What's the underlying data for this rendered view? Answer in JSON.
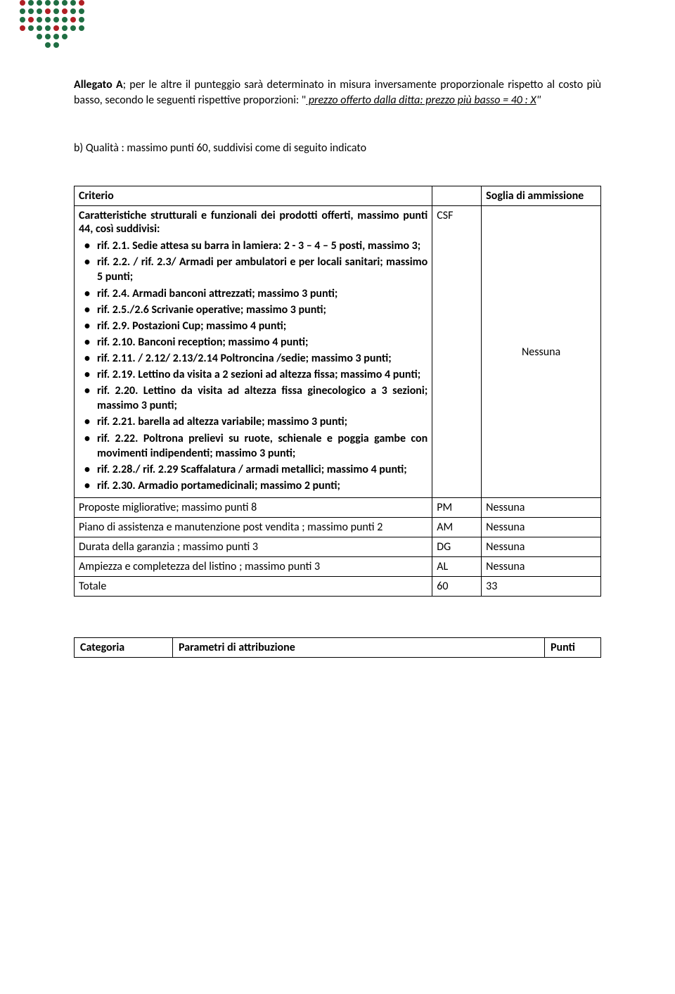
{
  "logo": {
    "rows": 6,
    "cols": 8,
    "gap": 12,
    "dots": [
      {
        "r": 0,
        "c": 0,
        "color": "#b01f24"
      },
      {
        "r": 0,
        "c": 1,
        "color": "#1f6e43"
      },
      {
        "r": 0,
        "c": 2,
        "color": "#1f6e43"
      },
      {
        "r": 0,
        "c": 3,
        "color": "#1f6e43"
      },
      {
        "r": 0,
        "c": 4,
        "color": "#1f6e43"
      },
      {
        "r": 0,
        "c": 5,
        "color": "#1f6e43"
      },
      {
        "r": 0,
        "c": 6,
        "color": "#1f6e43"
      },
      {
        "r": 0,
        "c": 7,
        "color": "#b01f24"
      },
      {
        "r": 1,
        "c": 0,
        "color": "#1f6e43"
      },
      {
        "r": 1,
        "c": 1,
        "color": "#1f6e43"
      },
      {
        "r": 1,
        "c": 2,
        "color": "#1f6e43"
      },
      {
        "r": 1,
        "c": 3,
        "color": "#b01f24"
      },
      {
        "r": 1,
        "c": 4,
        "color": "#1f6e43"
      },
      {
        "r": 1,
        "c": 5,
        "color": "#b01f24"
      },
      {
        "r": 1,
        "c": 6,
        "color": "#1f6e43"
      },
      {
        "r": 1,
        "c": 7,
        "color": "#1f6e43"
      },
      {
        "r": 2,
        "c": 0,
        "color": "#1f6e43"
      },
      {
        "r": 2,
        "c": 1,
        "color": "#b01f24"
      },
      {
        "r": 2,
        "c": 2,
        "color": "#1f6e43"
      },
      {
        "r": 2,
        "c": 3,
        "color": "#1f6e43"
      },
      {
        "r": 2,
        "c": 4,
        "color": "#1f6e43"
      },
      {
        "r": 2,
        "c": 5,
        "color": "#1f6e43"
      },
      {
        "r": 2,
        "c": 6,
        "color": "#b01f24"
      },
      {
        "r": 2,
        "c": 7,
        "color": "#1f6e43"
      },
      {
        "r": 3,
        "c": 0,
        "color": "#b01f24"
      },
      {
        "r": 3,
        "c": 1,
        "color": "#1f6e43"
      },
      {
        "r": 3,
        "c": 2,
        "color": "#1f6e43"
      },
      {
        "r": 3,
        "c": 3,
        "color": "#1f6e43"
      },
      {
        "r": 3,
        "c": 4,
        "color": "#b01f24"
      },
      {
        "r": 3,
        "c": 5,
        "color": "#1f6e43"
      },
      {
        "r": 3,
        "c": 6,
        "color": "#1f6e43"
      },
      {
        "r": 3,
        "c": 7,
        "color": "#1f6e43"
      },
      {
        "r": 4,
        "c": 2,
        "color": "#1f6e43"
      },
      {
        "r": 4,
        "c": 3,
        "color": "#1f6e43"
      },
      {
        "r": 4,
        "c": 4,
        "color": "#1f6e43"
      },
      {
        "r": 4,
        "c": 5,
        "color": "#1f6e43"
      },
      {
        "r": 5,
        "c": 3,
        "color": "#1f6e43"
      },
      {
        "r": 5,
        "c": 4,
        "color": "#1f6e43"
      }
    ]
  },
  "intro": {
    "part1": "Allegato A",
    "part2": "; per le altre il punteggio sarà determinato in misura inversamente proporzionale rispetto al costo più basso, secondo le seguenti rispettive proporzioni: \"",
    "formula": " prezzo offerto dalla ditta: prezzo più basso = 40 : X",
    "part3": "\""
  },
  "sub": "b) Qualità : massimo punti 60, suddivisi come di seguito indicato",
  "table": {
    "headers": {
      "criterio": "Criterio",
      "code": "",
      "soglia": "Soglia di ammissione"
    },
    "row1": {
      "title": "Caratteristiche strutturali e funzionali dei prodotti offerti, massimo punti 44, così suddivisi:",
      "code": "CSF",
      "soglia": "Nessuna",
      "items": [
        "rif. 2.1. Sedie attesa su barra in lamiera: 2 - 3 – 4 – 5 posti, massimo 3;",
        "rif. 2.2. / rif. 2.3/ Armadi per ambulatori e per locali sanitari; massimo 5 punti;",
        "rif. 2.4. Armadi banconi attrezzati; massimo 3 punti;",
        "rif. 2.5./2.6 Scrivanie operative; massimo 3 punti;",
        "rif. 2.9. Postazioni Cup; massimo 4 punti;",
        "rif. 2.10. Banconi reception; massimo 4 punti;",
        "rif. 2.11. / 2.12/ 2.13/2.14 Poltroncina /sedie; massimo 3 punti;",
        "rif. 2.19. Lettino da visita a 2 sezioni ad altezza fissa; massimo 4 punti;",
        "rif. 2.20. Lettino da visita ad altezza fissa ginecologico a 3 sezioni; massimo 3 punti;",
        "rif. 2.21. barella ad altezza variabile; massimo 3 punti;",
        "rif. 2.22. Poltrona prelievi su ruote, schienale e poggia gambe con movimenti indipendenti; massimo 3 punti;",
        "rif. 2.28./ rif. 2.29 Scaffalatura / armadi metallici; massimo 4 punti;",
        "rif. 2.30. Armadio portamedicinali; massimo 2 punti;"
      ]
    },
    "rows": [
      {
        "label": "Proposte migliorative; massimo  punti 8",
        "code": "PM",
        "soglia": "Nessuna"
      },
      {
        "label": "Piano di assistenza e manutenzione post vendita ; massimo punti 2",
        "code": "AM",
        "soglia": "Nessuna"
      },
      {
        "label": "Durata della garanzia ; massimo  punti 3",
        "code": "DG",
        "soglia": "Nessuna"
      },
      {
        "label": "Ampiezza e completezza del listino ; massimo  punti 3",
        "code": "AL",
        "soglia": "Nessuna"
      }
    ],
    "total": {
      "label": "Totale",
      "code": "60",
      "soglia": "33"
    }
  },
  "cat_table": {
    "c1": "Categoria",
    "c2": "Parametri di attribuzione",
    "c3": "Punti"
  }
}
